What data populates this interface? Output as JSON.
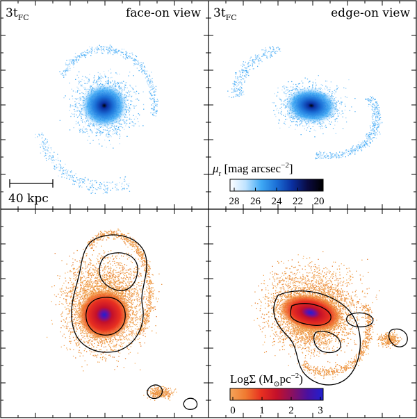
{
  "panels": {
    "top_left": {
      "time_label": "3t",
      "time_sub": "FC",
      "view_label": "face-on view"
    },
    "top_right": {
      "time_label": "3t",
      "time_sub": "FC",
      "view_label": "edge-on view"
    }
  },
  "scale_bar": {
    "label": "40 kpc"
  },
  "colorbar_top": {
    "symbol": "μ",
    "symbol_sub": "r",
    "unit_text": " [mag arcsec",
    "unit_sup": "−2",
    "unit_close": "]",
    "ticks": [
      "28",
      "26",
      "24",
      "22",
      "20"
    ],
    "gradient": [
      "#ffffff",
      "#bfe3ff",
      "#3fa9f5",
      "#1b6fd6",
      "#0a2fa0",
      "#0a0a40",
      "#000000"
    ]
  },
  "colorbar_bottom": {
    "symbol": "LogΣ",
    "unit_text": " (M",
    "unit_sub": "⊙",
    "unit_mid": "pc",
    "unit_sup": "−2",
    "unit_close": ")",
    "ticks": [
      "0",
      "1",
      "2",
      "3"
    ],
    "gradient": [
      "#f5a55a",
      "#f07a30",
      "#e83020",
      "#c4102a",
      "#8a1060",
      "#4a10a0",
      "#2020d0"
    ]
  }
}
